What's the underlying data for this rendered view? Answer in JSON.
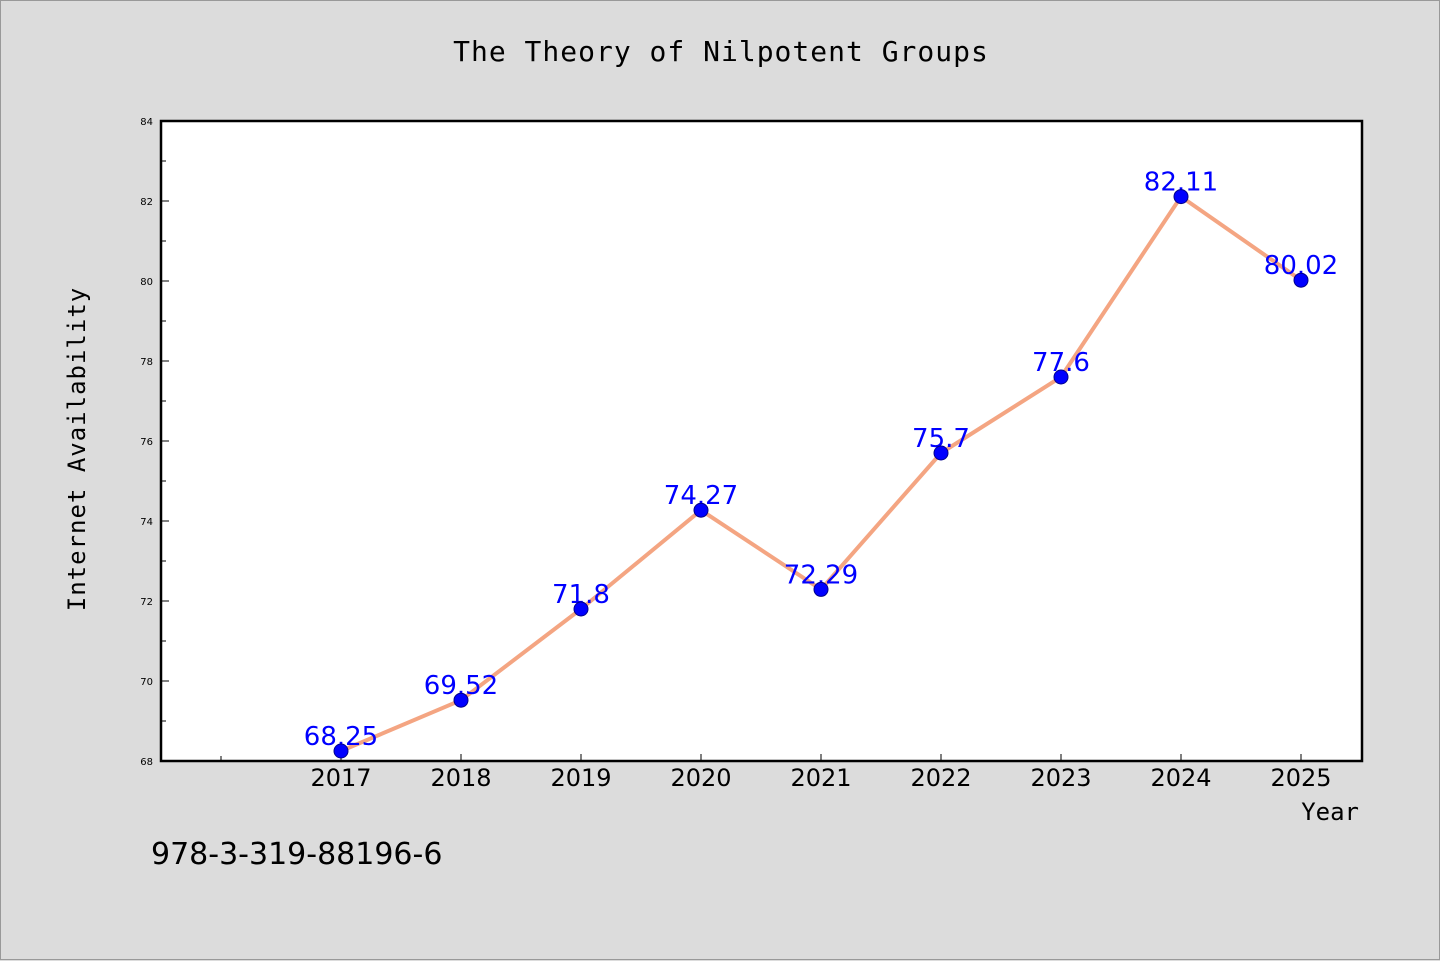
{
  "chart_data": {
    "type": "line",
    "title": "The Theory of Nilpotent Groups",
    "xlabel": "Year",
    "ylabel": "Internet Availability",
    "categories": [
      "2017",
      "2018",
      "2019",
      "2020",
      "2021",
      "2022",
      "2023",
      "2024",
      "2025"
    ],
    "values": [
      68.25,
      69.52,
      71.8,
      74.27,
      72.29,
      75.7,
      77.6,
      82.11,
      80.02
    ],
    "data_labels": [
      "68.25",
      "69.52",
      "71.8",
      "74.27",
      "72.29",
      "75.7",
      "77.6",
      "82.11",
      "80.02"
    ],
    "ylim": [
      68,
      84
    ],
    "yticks": [
      68,
      70,
      72,
      74,
      76,
      78,
      80,
      82,
      84
    ],
    "grid": false,
    "legend": "none",
    "line_color": "#f4a582",
    "marker_color": "#0000ff",
    "label_color": "#0000ff"
  },
  "footer": {
    "code": "978-3-319-88196-6"
  }
}
